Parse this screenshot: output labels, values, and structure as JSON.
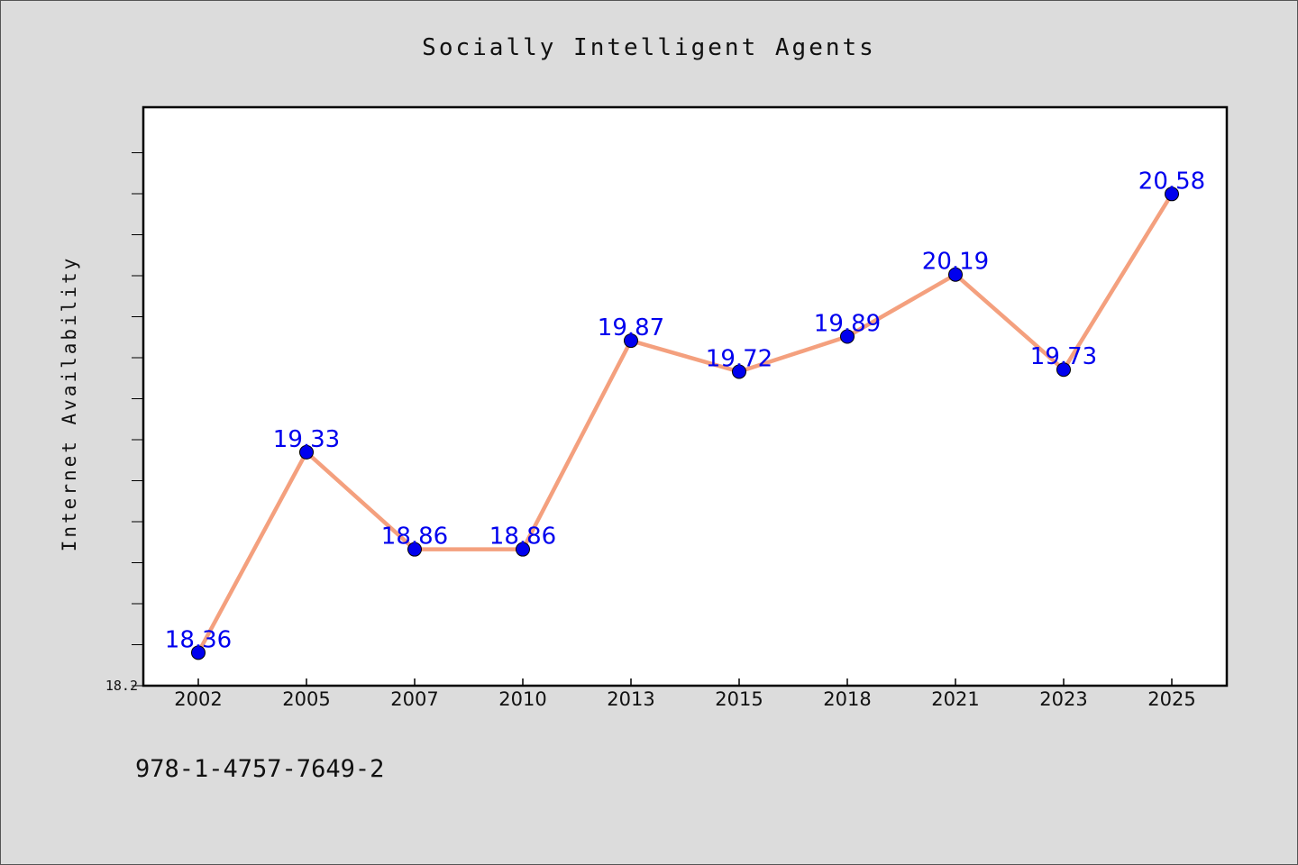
{
  "chart_data": {
    "type": "line",
    "title": "Socially Intelligent Agents",
    "ylabel": "Internet Availability",
    "xlabel": "",
    "categories": [
      "2002",
      "2005",
      "2007",
      "2010",
      "2013",
      "2015",
      "2018",
      "2021",
      "2023",
      "2025"
    ],
    "series": [
      {
        "values": [
          18.36,
          19.33,
          18.86,
          18.86,
          19.87,
          19.72,
          19.89,
          20.19,
          19.73,
          20.58
        ],
        "labels": [
          "18.36",
          "19.33",
          "18.86",
          "18.86",
          "19.87",
          "19.72",
          "19.89",
          "20.19",
          "19.73",
          "20.58"
        ],
        "line_color": "#f4a07e",
        "marker_color": "#0000ee",
        "label_color": "#0000ee"
      }
    ],
    "ylim": [
      18.2,
      21.0
    ],
    "ytick_label": "18.2",
    "grid": false,
    "legend": "none"
  },
  "footer": {
    "isbn": "978-1-4757-7649-2"
  }
}
